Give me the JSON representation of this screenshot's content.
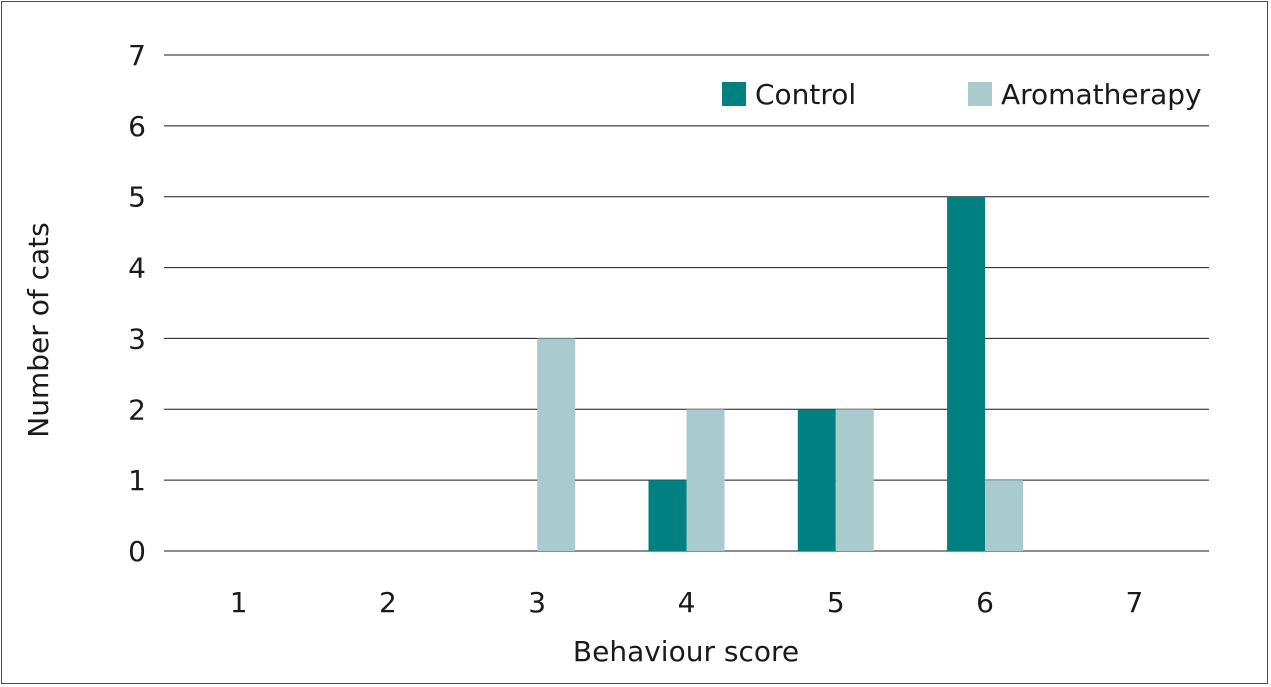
{
  "chart_data": {
    "type": "bar",
    "title": "",
    "xlabel": "Behaviour score",
    "ylabel": "Number of cats",
    "categories": [
      "1",
      "2",
      "3",
      "4",
      "5",
      "6",
      "7"
    ],
    "y_ticks": [
      "0",
      "1",
      "2",
      "3",
      "4",
      "5",
      "6",
      "7"
    ],
    "ylim": [
      0,
      7
    ],
    "grid": true,
    "legend_position": "top-right",
    "series": [
      {
        "name": "Control",
        "color": "#008080",
        "values": [
          0,
          0,
          0,
          1,
          2,
          5,
          0
        ]
      },
      {
        "name": "Aromatherapy",
        "color": "#a9cbcd",
        "values": [
          0,
          0,
          3,
          2,
          2,
          1,
          0
        ]
      }
    ]
  }
}
